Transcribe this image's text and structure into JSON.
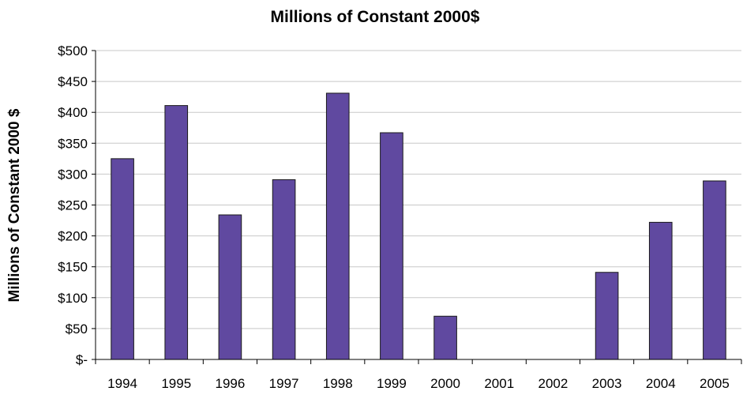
{
  "chart_data": {
    "type": "bar",
    "title": "Millions of Constant 2000$",
    "xlabel": "",
    "ylabel": "Millions of Constant 2000 $",
    "categories": [
      "1994",
      "1995",
      "1996",
      "1997",
      "1998",
      "1999",
      "2000",
      "2001",
      "2002",
      "2003",
      "2004",
      "2005"
    ],
    "values": [
      325,
      411,
      234,
      291,
      431,
      367,
      70,
      0,
      0,
      141,
      222,
      289
    ],
    "ylim": [
      0,
      500
    ],
    "yticks": [
      0,
      50,
      100,
      150,
      200,
      250,
      300,
      350,
      400,
      450,
      500
    ],
    "ytick_labels": [
      "$-",
      "$50",
      "$100",
      "$150",
      "$200",
      "$250",
      "$300",
      "$350",
      "$400",
      "$450",
      "$500"
    ],
    "grid": true,
    "legend": "none",
    "bar_color": "#6049a0",
    "bar_edge_color": "#1a1a1a",
    "grid_color": "#c8c8c8"
  }
}
